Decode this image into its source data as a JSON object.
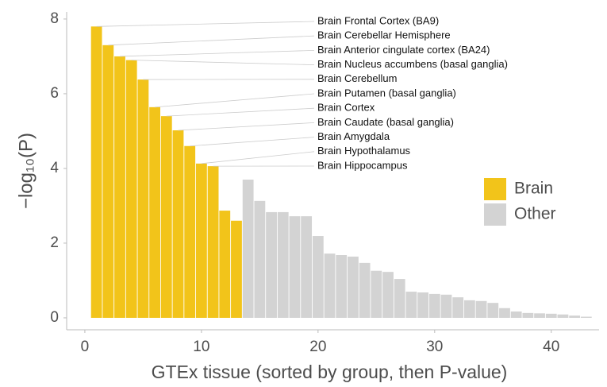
{
  "chart_data": {
    "type": "bar",
    "xlabel": "GTEx tissue (sorted by group, then P-value)",
    "ylabel": "−log₁₀(P)",
    "xlim": [
      -1.56,
      44.1
    ],
    "ylim": [
      -0.32,
      8.19
    ],
    "xticks": [
      0,
      10,
      20,
      30,
      40
    ],
    "yticks": [
      0,
      2,
      4,
      6,
      8
    ],
    "legend": "right",
    "series": [
      {
        "name": "Brain",
        "color": "#f2c41a",
        "x": [
          1,
          2,
          3,
          4,
          5,
          6,
          7,
          8,
          9,
          10,
          11,
          12,
          13
        ],
        "values": [
          7.8,
          7.3,
          7.0,
          6.9,
          6.38,
          5.64,
          5.4,
          5.02,
          4.6,
          4.13,
          4.06,
          2.87,
          2.6
        ]
      },
      {
        "name": "Other",
        "color": "#d3d3d3",
        "x": [
          14,
          15,
          16,
          17,
          18,
          19,
          20,
          21,
          22,
          23,
          24,
          25,
          26,
          27,
          28,
          29,
          30,
          31,
          32,
          33,
          34,
          35,
          36,
          37,
          38,
          39,
          40,
          41,
          42,
          43
        ],
        "values": [
          3.7,
          3.13,
          2.83,
          2.83,
          2.72,
          2.72,
          2.19,
          1.72,
          1.68,
          1.64,
          1.47,
          1.26,
          1.23,
          1.04,
          0.7,
          0.68,
          0.64,
          0.62,
          0.55,
          0.47,
          0.45,
          0.4,
          0.26,
          0.17,
          0.13,
          0.12,
          0.11,
          0.09,
          0.06,
          0.03
        ]
      }
    ],
    "annotations": [
      "Brain Frontal Cortex (BA9)",
      "Brain Cerebellar Hemisphere",
      "Brain Anterior cingulate cortex (BA24)",
      "Brain Nucleus accumbens (basal ganglia)",
      "Brain Cerebellum",
      "Brain Putamen (basal ganglia)",
      "Brain Cortex",
      "Brain Caudate (basal ganglia)",
      "Brain Amygdala",
      "Brain Hypothalamus",
      "Brain Hippocampus"
    ]
  }
}
